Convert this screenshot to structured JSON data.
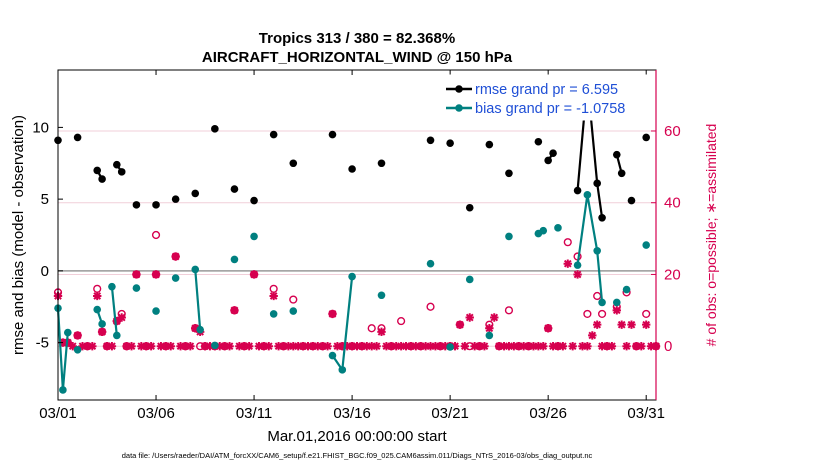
{
  "chart_data": {
    "type": "line",
    "title": "Tropics 313 / 380 = 82.368%",
    "subtitle": "AIRCRAFT_HORIZONTAL_WIND @ 150 hPa",
    "xlabel": "Mar.01,2016 00:00:00 start",
    "ylabel_left": "rmse and bias (model - observation)",
    "ylabel_right": "# of obs: o=possible; ∗=assimilated",
    "footnote": "data file: /Users/raeder/DAI/ATM_forcXX/CAM6_setup/f.e21.FHIST_BGC.f09_025.CAM6assim.011/Diags_NTrS_2016-03/obs_diag_output.nc",
    "x_tick_labels": [
      "03/01",
      "03/06",
      "03/11",
      "03/16",
      "03/21",
      "03/26",
      "03/31"
    ],
    "x_ticks": [
      1,
      6,
      11,
      16,
      21,
      26,
      31
    ],
    "y_left_ticks": [
      -5,
      0,
      5,
      10
    ],
    "y_right_ticks": [
      0,
      20,
      40,
      60
    ],
    "xlim": [
      1,
      31.5
    ],
    "ylim_left": [
      -9,
      14
    ],
    "ylim_right": [
      -15,
      77
    ],
    "zero_line": true,
    "colors": {
      "rmse": "#000000",
      "bias": "#008080",
      "obs": "#d6004f",
      "zero": "#999999",
      "legend_text": "#1f4fd6"
    },
    "legend_position": "top-right",
    "series": [
      {
        "name": "rmse grand pr = 6.595",
        "axis": "left",
        "points": [
          [
            1.0,
            9.1
          ],
          [
            1.5,
            null
          ],
          [
            2.0,
            9.3
          ],
          [
            2.5,
            null
          ],
          [
            3.0,
            7.0
          ],
          [
            3.25,
            6.4
          ],
          [
            3.5,
            null
          ],
          [
            4.0,
            7.4
          ],
          [
            4.25,
            6.9
          ],
          [
            4.5,
            null
          ],
          [
            5.0,
            4.6
          ],
          [
            5.5,
            null
          ],
          [
            6.0,
            4.6
          ],
          [
            6.5,
            null
          ],
          [
            7.0,
            5.0
          ],
          [
            7.5,
            null
          ],
          [
            8.0,
            5.4
          ],
          [
            8.5,
            null
          ],
          [
            9.0,
            9.9
          ],
          [
            9.5,
            null
          ],
          [
            10.0,
            5.7
          ],
          [
            10.5,
            null
          ],
          [
            11.0,
            4.9
          ],
          [
            11.5,
            null
          ],
          [
            12.0,
            9.5
          ],
          [
            12.5,
            null
          ],
          [
            13.0,
            7.5
          ],
          [
            13.5,
            null
          ],
          [
            15.0,
            9.5
          ],
          [
            15.5,
            null
          ],
          [
            16.0,
            7.1
          ],
          [
            16.5,
            null
          ],
          [
            17.5,
            7.5
          ],
          [
            18.0,
            null
          ],
          [
            20.0,
            9.1
          ],
          [
            20.5,
            null
          ],
          [
            21.0,
            8.9
          ],
          [
            21.5,
            null
          ],
          [
            22.0,
            4.4
          ],
          [
            22.5,
            null
          ],
          [
            23.0,
            8.8
          ],
          [
            23.5,
            null
          ],
          [
            24.0,
            6.8
          ],
          [
            24.5,
            null
          ],
          [
            25.5,
            9.0
          ],
          [
            26.0,
            null
          ],
          [
            26.0,
            7.7
          ],
          [
            26.25,
            8.2
          ],
          [
            26.5,
            null
          ],
          [
            27.5,
            5.6
          ],
          [
            28.0,
            13.3
          ],
          [
            28.5,
            6.1
          ],
          [
            28.75,
            3.7
          ],
          [
            29.0,
            null
          ],
          [
            29.5,
            8.1
          ],
          [
            29.75,
            6.8
          ],
          [
            30.0,
            null
          ],
          [
            30.25,
            4.9
          ],
          [
            30.5,
            null
          ],
          [
            31.0,
            9.3
          ]
        ]
      },
      {
        "name": "bias grand pr = -1.0758",
        "axis": "left",
        "points": [
          [
            1.0,
            -2.6
          ],
          [
            1.25,
            -8.3
          ],
          [
            1.5,
            -4.3
          ],
          [
            1.75,
            null
          ],
          [
            2.0,
            -5.5
          ],
          [
            2.5,
            null
          ],
          [
            3.0,
            -2.7
          ],
          [
            3.25,
            -3.7
          ],
          [
            3.5,
            null
          ],
          [
            3.75,
            -1.1
          ],
          [
            4.0,
            -4.5
          ],
          [
            4.5,
            null
          ],
          [
            5.0,
            -1.2
          ],
          [
            5.5,
            null
          ],
          [
            6.0,
            -2.8
          ],
          [
            6.5,
            null
          ],
          [
            7.0,
            -0.5
          ],
          [
            7.5,
            null
          ],
          [
            8.0,
            0.1
          ],
          [
            8.25,
            -4.1
          ],
          [
            8.5,
            null
          ],
          [
            9.0,
            -5.2
          ],
          [
            9.5,
            null
          ],
          [
            10.0,
            0.8
          ],
          [
            10.5,
            null
          ],
          [
            11.0,
            2.4
          ],
          [
            11.5,
            null
          ],
          [
            12.0,
            -3.0
          ],
          [
            12.5,
            null
          ],
          [
            13.0,
            -2.8
          ],
          [
            13.5,
            null
          ],
          [
            15.0,
            -5.9
          ],
          [
            15.5,
            -6.9
          ],
          [
            16.0,
            -0.4
          ],
          [
            16.5,
            null
          ],
          [
            17.5,
            -1.7
          ],
          [
            18.0,
            null
          ],
          [
            20.0,
            0.5
          ],
          [
            20.5,
            null
          ],
          [
            21.0,
            -5.3
          ],
          [
            21.5,
            null
          ],
          [
            22.0,
            -0.6
          ],
          [
            22.5,
            null
          ],
          [
            23.0,
            -4.5
          ],
          [
            23.5,
            null
          ],
          [
            24.0,
            2.4
          ],
          [
            24.5,
            null
          ],
          [
            25.5,
            2.6
          ],
          [
            25.75,
            2.8
          ],
          [
            26.0,
            null
          ],
          [
            26.5,
            3.0
          ],
          [
            27.0,
            null
          ],
          [
            27.5,
            0.4
          ],
          [
            28.0,
            5.3
          ],
          [
            28.5,
            1.4
          ],
          [
            28.75,
            -2.2
          ],
          [
            29.0,
            null
          ],
          [
            29.5,
            -2.2
          ],
          [
            29.75,
            null
          ],
          [
            30.0,
            -1.3
          ],
          [
            30.5,
            null
          ],
          [
            31.0,
            1.8
          ]
        ]
      },
      {
        "name": "possible",
        "axis": "right",
        "marker": "o",
        "points": [
          [
            1.0,
            15
          ],
          [
            1.25,
            1
          ],
          [
            1.5,
            1
          ],
          [
            2.0,
            3
          ],
          [
            2.5,
            0
          ],
          [
            3.0,
            16
          ],
          [
            3.25,
            4
          ],
          [
            3.5,
            0
          ],
          [
            4.0,
            7
          ],
          [
            4.25,
            9
          ],
          [
            4.5,
            0
          ],
          [
            5.0,
            20
          ],
          [
            5.5,
            0
          ],
          [
            6.0,
            20
          ],
          [
            6.0,
            31
          ],
          [
            6.5,
            0
          ],
          [
            7.0,
            25
          ],
          [
            7.5,
            0
          ],
          [
            8.0,
            5
          ],
          [
            8.25,
            0
          ],
          [
            8.5,
            0
          ],
          [
            9.0,
            0
          ],
          [
            9.5,
            0
          ],
          [
            10.0,
            10
          ],
          [
            10.5,
            0
          ],
          [
            11.0,
            20
          ],
          [
            11.5,
            0
          ],
          [
            12.0,
            16
          ],
          [
            12.5,
            0
          ],
          [
            13.0,
            13
          ],
          [
            13.5,
            0
          ],
          [
            14.0,
            0
          ],
          [
            14.5,
            0
          ],
          [
            15.0,
            9
          ],
          [
            15.5,
            0
          ],
          [
            16.0,
            0
          ],
          [
            16.5,
            0
          ],
          [
            17.0,
            5
          ],
          [
            17.5,
            5
          ],
          [
            18.0,
            0
          ],
          [
            18.5,
            7
          ],
          [
            19.0,
            0
          ],
          [
            19.5,
            0
          ],
          [
            20.0,
            11
          ],
          [
            20.5,
            0
          ],
          [
            21.0,
            0
          ],
          [
            21.5,
            6
          ],
          [
            22.0,
            0
          ],
          [
            22.5,
            0
          ],
          [
            23.0,
            6
          ],
          [
            23.5,
            0
          ],
          [
            24.0,
            10
          ],
          [
            24.5,
            0
          ],
          [
            25.0,
            0
          ],
          [
            26.0,
            5
          ],
          [
            26.5,
            0
          ],
          [
            27.0,
            29
          ],
          [
            27.5,
            25
          ],
          [
            28.0,
            9
          ],
          [
            28.5,
            14
          ],
          [
            28.75,
            9
          ],
          [
            29.0,
            0
          ],
          [
            29.5,
            11
          ],
          [
            30.0,
            15
          ],
          [
            30.5,
            0
          ],
          [
            31.0,
            9
          ],
          [
            31.5,
            0
          ]
        ]
      },
      {
        "name": "assimilated",
        "axis": "right",
        "marker": "*",
        "points": [
          [
            1.0,
            14
          ],
          [
            1.25,
            1
          ],
          [
            1.5,
            1
          ],
          [
            1.75,
            0
          ],
          [
            2.0,
            3
          ],
          [
            2.25,
            0
          ],
          [
            2.5,
            0
          ],
          [
            2.75,
            0
          ],
          [
            3.0,
            14
          ],
          [
            3.25,
            4
          ],
          [
            3.5,
            0
          ],
          [
            3.75,
            0
          ],
          [
            4.0,
            7
          ],
          [
            4.25,
            8
          ],
          [
            4.5,
            0
          ],
          [
            4.75,
            0
          ],
          [
            5.0,
            20
          ],
          [
            5.25,
            0
          ],
          [
            5.5,
            0
          ],
          [
            5.75,
            0
          ],
          [
            6.0,
            20
          ],
          [
            6.25,
            0
          ],
          [
            6.5,
            0
          ],
          [
            6.75,
            0
          ],
          [
            7.0,
            25
          ],
          [
            7.25,
            0
          ],
          [
            7.5,
            0
          ],
          [
            7.75,
            0
          ],
          [
            8.0,
            5
          ],
          [
            8.25,
            4
          ],
          [
            8.5,
            0
          ],
          [
            8.75,
            0
          ],
          [
            9.0,
            0
          ],
          [
            9.25,
            0
          ],
          [
            9.5,
            0
          ],
          [
            9.75,
            0
          ],
          [
            10.0,
            10
          ],
          [
            10.25,
            0
          ],
          [
            10.5,
            0
          ],
          [
            10.75,
            0
          ],
          [
            11.0,
            20
          ],
          [
            11.25,
            0
          ],
          [
            11.5,
            0
          ],
          [
            11.75,
            0
          ],
          [
            12.0,
            14
          ],
          [
            12.25,
            0
          ],
          [
            12.5,
            0
          ],
          [
            12.75,
            0
          ],
          [
            13.0,
            0
          ],
          [
            13.25,
            0
          ],
          [
            13.5,
            0
          ],
          [
            13.75,
            0
          ],
          [
            14.0,
            0
          ],
          [
            14.25,
            0
          ],
          [
            14.5,
            0
          ],
          [
            14.75,
            0
          ],
          [
            15.0,
            9
          ],
          [
            15.25,
            0
          ],
          [
            15.5,
            0
          ],
          [
            15.75,
            0
          ],
          [
            16.0,
            0
          ],
          [
            16.25,
            0
          ],
          [
            16.5,
            0
          ],
          [
            16.75,
            0
          ],
          [
            17.0,
            0
          ],
          [
            17.25,
            0
          ],
          [
            17.5,
            4
          ],
          [
            17.75,
            0
          ],
          [
            18.0,
            0
          ],
          [
            18.25,
            0
          ],
          [
            18.5,
            0
          ],
          [
            18.75,
            0
          ],
          [
            19.0,
            0
          ],
          [
            19.25,
            0
          ],
          [
            19.5,
            0
          ],
          [
            19.75,
            0
          ],
          [
            20.0,
            0
          ],
          [
            20.25,
            0
          ],
          [
            20.5,
            0
          ],
          [
            20.75,
            0
          ],
          [
            21.0,
            0
          ],
          [
            21.25,
            0
          ],
          [
            21.5,
            6
          ],
          [
            21.75,
            0
          ],
          [
            22.0,
            8
          ],
          [
            22.25,
            0
          ],
          [
            22.5,
            0
          ],
          [
            22.75,
            0
          ],
          [
            23.0,
            5
          ],
          [
            23.25,
            8
          ],
          [
            23.5,
            0
          ],
          [
            23.75,
            0
          ],
          [
            24.0,
            0
          ],
          [
            24.25,
            0
          ],
          [
            24.5,
            0
          ],
          [
            24.75,
            0
          ],
          [
            25.0,
            0
          ],
          [
            25.25,
            0
          ],
          [
            25.5,
            0
          ],
          [
            25.75,
            0
          ],
          [
            26.0,
            5
          ],
          [
            26.25,
            0
          ],
          [
            26.5,
            0
          ],
          [
            26.75,
            0
          ],
          [
            27.0,
            23
          ],
          [
            27.25,
            0
          ],
          [
            27.5,
            20
          ],
          [
            27.75,
            0
          ],
          [
            28.0,
            0
          ],
          [
            28.25,
            3
          ],
          [
            28.5,
            6
          ],
          [
            28.75,
            0
          ],
          [
            29.0,
            0
          ],
          [
            29.25,
            0
          ],
          [
            29.5,
            10
          ],
          [
            29.75,
            6
          ],
          [
            30.0,
            0
          ],
          [
            30.25,
            6
          ],
          [
            30.5,
            0
          ],
          [
            30.75,
            0
          ],
          [
            31.0,
            6
          ],
          [
            31.25,
            0
          ],
          [
            31.5,
            0
          ]
        ]
      }
    ]
  }
}
